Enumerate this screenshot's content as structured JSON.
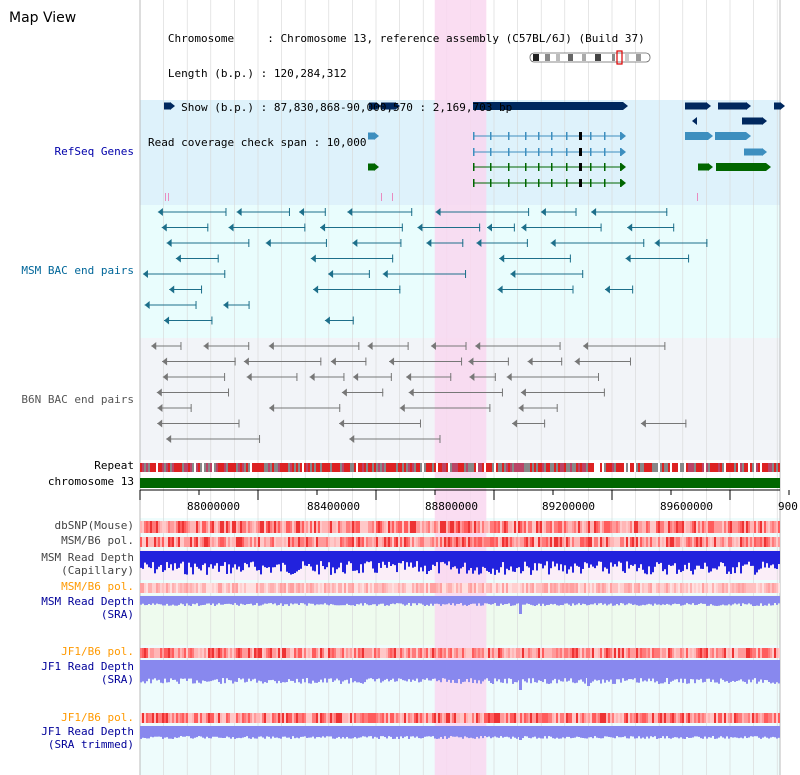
{
  "header": {
    "title": "Map View",
    "info_lines": [
      "   Chromosome     : Chromosome 13, reference assembly (C57BL/6J) (Build 37)",
      "   Length (b.p.) : 120,284,312",
      "     Show (b.p.) : 87,830,868-90,000,570 : 2,169,703 bp",
      "Read coverage check span : 10,000"
    ]
  },
  "view": {
    "start": 87830868,
    "end": 90000570,
    "highlight_start": 88830000,
    "highlight_end": 89005000
  },
  "tracks": {
    "refseq": {
      "label": "RefSeq Genes",
      "color": "#0000aa"
    },
    "msm_bac": {
      "label": "MSM BAC end pairs",
      "color": "#006699"
    },
    "b6n_bac": {
      "label": "B6N BAC end pairs",
      "color": "#555555"
    },
    "repeat": {
      "label": "Repeat"
    },
    "chromosome": {
      "label": "chromosome 13",
      "color": "#006600"
    },
    "dbsnp": {
      "label": "dbSNP(Mouse)"
    },
    "msm_b6_pol": {
      "label": "MSM/B6 pol."
    },
    "msm_read_depth_cap": {
      "label": "MSM Read Depth",
      "sublabel": "(Capillary)"
    },
    "msm_b6_pol_sra": {
      "label": "MSM/B6 pol.",
      "color": "#ff9900"
    },
    "msm_read_depth_sra": {
      "label": "MSM Read Depth",
      "sublabel": "(SRA)",
      "color": "#000099"
    },
    "jf1_b6_pol": {
      "label": "JF1/B6 pol.",
      "color": "#ff9900"
    },
    "jf1_read_depth_sra": {
      "label": "JF1 Read Depth",
      "sublabel": "(SRA)",
      "color": "#000099"
    },
    "jf1_b6_pol_trim": {
      "label": "JF1/B6 pol.",
      "color": "#ff9900"
    },
    "jf1_read_depth_trim": {
      "label": "JF1 Read Depth",
      "sublabel": "(SRA trimmed)",
      "color": "#000099"
    }
  },
  "ruler": {
    "ticks": [
      "88000000",
      "88400000",
      "88800000",
      "89200000",
      "89600000",
      "900"
    ]
  },
  "colors": {
    "refseq_bg": "#def2fb",
    "bac_bg": "#e9fdfd",
    "b6n_bg": "#f2f4f8",
    "highlight": "#f9d7f0",
    "gene_dark": "#00285e",
    "gene_mid": "#3d8fbf",
    "gene_green": "#006600",
    "depth_blue": "#2222dd",
    "depth_light": "#8888ee"
  }
}
